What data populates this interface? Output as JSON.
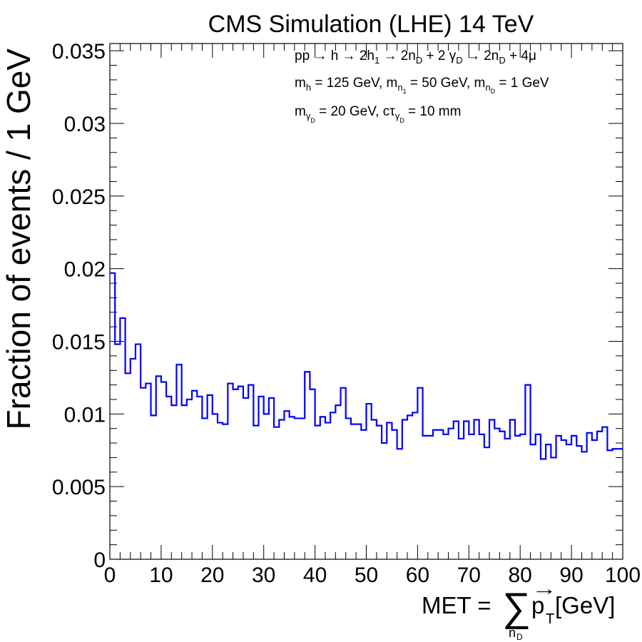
{
  "chart_data": {
    "type": "histogram",
    "title": "CMS Simulation (LHE) 14 TeV",
    "ylabel": "Fraction of events / 1 GeV",
    "xlabel": {
      "prefix": "MET = ",
      "sum": "∑",
      "sum_sub": "n",
      "sum_sub_sub": "D",
      "p": "p",
      "arrow": "→",
      "p_sub": "T",
      "suffix": " [GeV]"
    },
    "annotations": {
      "line1": {
        "a": "pp → h → 2h",
        "a_sub": "1",
        "b": " → 2n",
        "b_sub": "D",
        "c": " + 2 γ",
        "c_sub": "D",
        "d": " → 2n",
        "d_sub": "D",
        "e": " + 4μ"
      },
      "line2": {
        "a": "m",
        "a_sub": "h",
        "b": " = 125 GeV, m",
        "b_sub": "n",
        "b_sub_sub": "1",
        "c": " = 50 GeV, m",
        "c_sub": "n",
        "c_sub_sub": "D",
        "d": " = 1 GeV"
      },
      "line3": {
        "a": "m",
        "a_sub": "γ",
        "a_sub_sub": "D",
        "b": " = 20 GeV, cτ",
        "b_sub": "γ",
        "b_sub_sub": "D",
        "c": " = 10 mm"
      }
    },
    "xlim": [
      0,
      100
    ],
    "ylim": [
      0,
      0.0355
    ],
    "x_ticks": [
      "0",
      "10",
      "20",
      "30",
      "40",
      "50",
      "60",
      "70",
      "80",
      "90",
      "100"
    ],
    "y_ticks": [
      "0",
      "0.005",
      "0.01",
      "0.015",
      "0.02",
      "0.025",
      "0.03",
      "0.035"
    ],
    "y_tick_values": [
      0,
      0.005,
      0.01,
      0.015,
      0.02,
      0.025,
      0.03,
      0.035
    ],
    "bin_width": 1,
    "values": [
      0.0197,
      0.0148,
      0.0166,
      0.0128,
      0.0138,
      0.0148,
      0.0118,
      0.0121,
      0.0099,
      0.0126,
      0.0122,
      0.0112,
      0.0106,
      0.0134,
      0.0106,
      0.011,
      0.0116,
      0.0112,
      0.0097,
      0.0113,
      0.01,
      0.0094,
      0.0093,
      0.0121,
      0.0117,
      0.0119,
      0.0111,
      0.012,
      0.0092,
      0.0112,
      0.01,
      0.0111,
      0.0091,
      0.0096,
      0.0102,
      0.0098,
      0.0097,
      0.0097,
      0.0129,
      0.0117,
      0.0092,
      0.0098,
      0.0094,
      0.0101,
      0.0106,
      0.0118,
      0.0097,
      0.0093,
      0.0093,
      0.0089,
      0.0107,
      0.0096,
      0.0092,
      0.008,
      0.0094,
      0.0089,
      0.0076,
      0.0096,
      0.0099,
      0.0101,
      0.0118,
      0.0085,
      0.0085,
      0.0089,
      0.0089,
      0.0086,
      0.009,
      0.0095,
      0.0083,
      0.0095,
      0.0086,
      0.0096,
      0.0086,
      0.0077,
      0.0096,
      0.009,
      0.0088,
      0.0083,
      0.0096,
      0.0085,
      0.0086,
      0.012,
      0.0079,
      0.0086,
      0.0069,
      0.0079,
      0.007,
      0.0085,
      0.0082,
      0.0079,
      0.0085,
      0.0078,
      0.0074,
      0.0087,
      0.0082,
      0.0088,
      0.0091,
      0.0075,
      0.0076,
      0.0076
    ],
    "line_color": "#0000ff",
    "grid": false,
    "legend": "none"
  }
}
